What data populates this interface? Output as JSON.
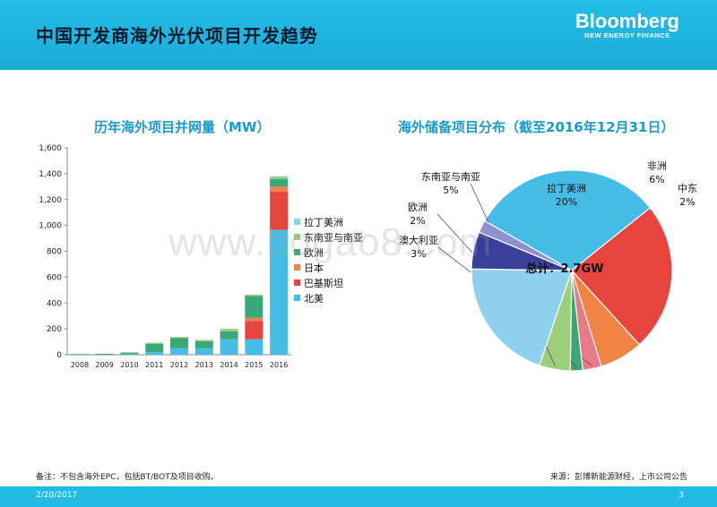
{
  "header": {
    "title": "中国开发商海外光伏项目开发趋势",
    "logo_brand": "Bloomberg",
    "logo_sub": "NEW ENERGY FINANCE"
  },
  "watermark": "www.bogao8.com",
  "footer": {
    "note": "备注：不包含海外EPC，包括BT/BOT及项目收购。",
    "source": "来源：彭博新能源财经，上市公司公告",
    "date": "2/20/2017",
    "page": "3"
  },
  "colors": {
    "header": "#22bbe5",
    "title_accent": "#1a9bc9",
    "latin_america": "#8fd0ee",
    "southeast_asia": "#9ccf7a",
    "europe": "#3aa776",
    "japan": "#f08445",
    "pakistan": "#e8443e",
    "north_america": "#46bde6",
    "africa": "#3a3f99",
    "middle_east": "#8e90d0",
    "australia": "#e87a8a"
  },
  "chart_data": [
    {
      "type": "bar",
      "stacked": true,
      "title": "历年海外项目并网量（MW）",
      "categories": [
        "2008",
        "2009",
        "2010",
        "2011",
        "2012",
        "2013",
        "2014",
        "2015",
        "2016"
      ],
      "ylim": [
        0,
        1600
      ],
      "yticks": [
        0,
        200,
        400,
        600,
        800,
        1000,
        1200,
        1400,
        1600
      ],
      "ytick_labels": [
        "0",
        "200",
        "400",
        "600",
        "800",
        "1,000",
        "1,200",
        "1,400",
        "1,600"
      ],
      "grid": false,
      "legend_position": "right",
      "series": [
        {
          "name": "北美",
          "color": "#46bde6",
          "values": [
            0,
            0,
            5,
            20,
            50,
            50,
            120,
            120,
            965
          ]
        },
        {
          "name": "巴基斯坦",
          "color": "#e8443e",
          "values": [
            0,
            0,
            0,
            0,
            0,
            0,
            0,
            140,
            295
          ]
        },
        {
          "name": "日本",
          "color": "#f08445",
          "values": [
            0,
            0,
            0,
            0,
            0,
            0,
            0,
            25,
            40
          ]
        },
        {
          "name": "欧洲",
          "color": "#3aa776",
          "values": [
            5,
            7,
            12,
            65,
            80,
            55,
            60,
            170,
            60
          ]
        },
        {
          "name": "东南亚与南亚",
          "color": "#9ccf7a",
          "values": [
            0,
            0,
            0,
            8,
            8,
            10,
            20,
            10,
            15
          ]
        },
        {
          "name": "拉丁美洲",
          "color": "#8fd0ee",
          "values": [
            0,
            0,
            0,
            0,
            0,
            0,
            0,
            0,
            5
          ]
        }
      ],
      "legend_order": [
        "拉丁美洲",
        "东南亚与南亚",
        "欧洲",
        "日本",
        "巴基斯坦",
        "北美"
      ]
    },
    {
      "type": "pie",
      "title": "海外储备项目分布（截至2016年12月31日）",
      "center_label": "总计：2.7GW",
      "slices": [
        {
          "name": "北美",
          "pct": "31%",
          "value": 31,
          "color": "#46bde6"
        },
        {
          "name": "巴基斯坦",
          "pct": "24%",
          "value": 24,
          "color": "#e8443e"
        },
        {
          "name": "日本",
          "pct": "7%",
          "value": 7,
          "color": "#f08445"
        },
        {
          "name": "澳大利亚",
          "pct": "3%",
          "value": 3,
          "color": "#e87a8a"
        },
        {
          "name": "欧洲",
          "pct": "2%",
          "value": 2,
          "color": "#3aa776"
        },
        {
          "name": "东南亚与南亚",
          "pct": "5%",
          "value": 5,
          "color": "#9ccf7a"
        },
        {
          "name": "拉丁美洲",
          "pct": "20%",
          "value": 20,
          "color": "#8fd0ee"
        },
        {
          "name": "非洲",
          "pct": "6%",
          "value": 6,
          "color": "#3a3f99"
        },
        {
          "name": "中东",
          "pct": "2%",
          "value": 2,
          "color": "#8e90d0"
        }
      ]
    }
  ]
}
